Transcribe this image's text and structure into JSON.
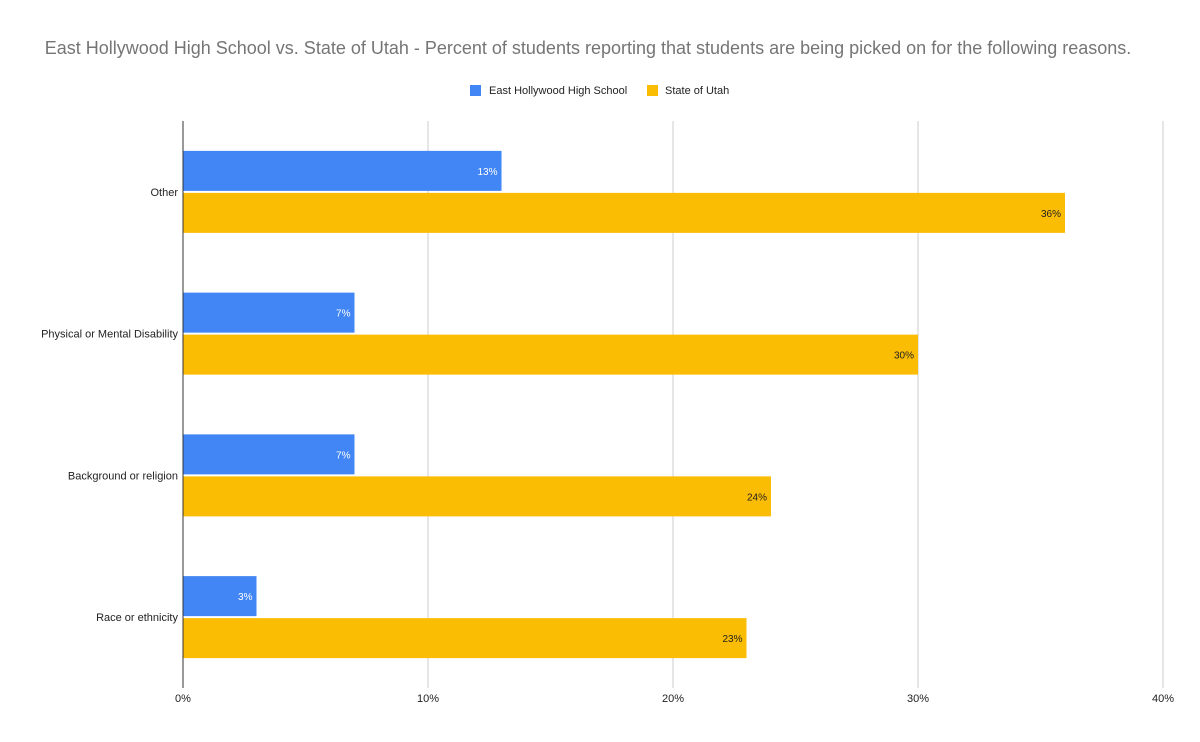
{
  "chart_data": {
    "type": "bar",
    "orientation": "horizontal",
    "title": "East Hollywood High School vs. State of Utah - Percent of students reporting that students are being picked on for the following reasons.",
    "categories": [
      "Other",
      "Physical or Mental Disability",
      "Background or religion",
      "Race or ethnicity"
    ],
    "series": [
      {
        "name": "East Hollywood High School",
        "color": "#4285F4",
        "label_color": "#ffffff",
        "values": [
          13,
          7,
          7,
          3
        ],
        "labels": [
          "13%",
          "7%",
          "7%",
          "3%"
        ]
      },
      {
        "name": "State of Utah",
        "color": "#FBBC04",
        "label_color": "#222222",
        "values": [
          36,
          30,
          24,
          23
        ],
        "labels": [
          "36%",
          "30%",
          "24%",
          "23%"
        ]
      }
    ],
    "xlim": [
      0,
      40
    ],
    "xticks": [
      0,
      10,
      20,
      30,
      40
    ],
    "xtick_labels": [
      "0%",
      "10%",
      "20%",
      "30%",
      "40%"
    ],
    "grid": true,
    "legend_position": "top-center",
    "xlabel": "",
    "ylabel": ""
  }
}
